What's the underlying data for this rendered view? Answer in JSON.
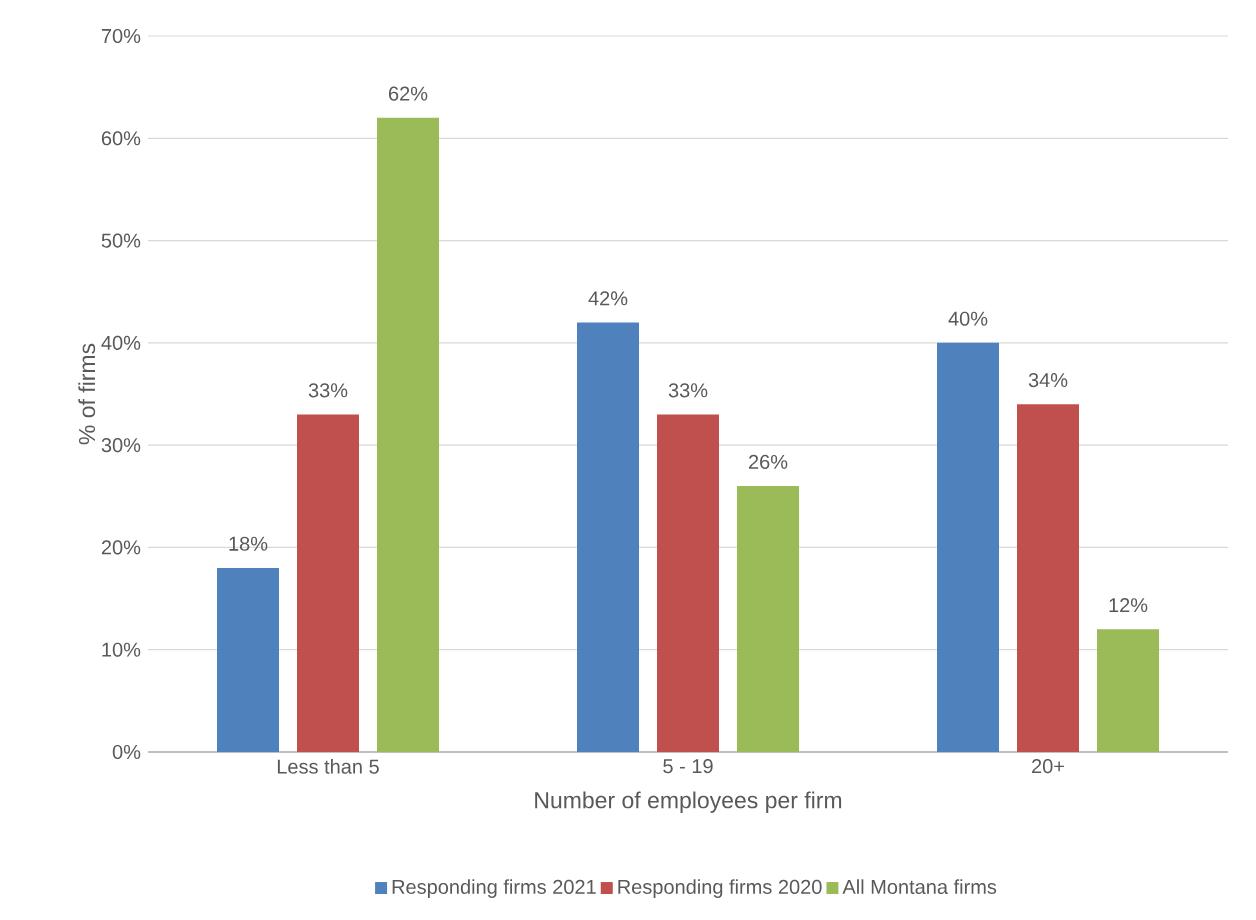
{
  "chart_data": {
    "type": "bar",
    "xlabel": "Number of employees per firm",
    "ylabel": "% of firms",
    "categories": [
      "Less than 5",
      "5 - 19",
      "20+"
    ],
    "series": [
      {
        "name": "Responding firms 2021",
        "color": "#4f81bd",
        "values": [
          18,
          42,
          40
        ],
        "value_labels": [
          "18%",
          "42%",
          "40%"
        ]
      },
      {
        "name": "Responding firms 2020",
        "color": "#c0504d",
        "values": [
          33,
          33,
          34
        ],
        "value_labels": [
          "33%",
          "33%",
          "34%"
        ]
      },
      {
        "name": "All Montana firms",
        "color": "#9bbb59",
        "values": [
          62,
          26,
          12
        ],
        "value_labels": [
          "62%",
          "26%",
          "12%"
        ]
      }
    ],
    "ylim": [
      0,
      70
    ],
    "yticks": [
      {
        "value": 0,
        "label": "0%"
      },
      {
        "value": 10,
        "label": "10%"
      },
      {
        "value": 20,
        "label": "20%"
      },
      {
        "value": 30,
        "label": "30%"
      },
      {
        "value": 40,
        "label": "40%"
      },
      {
        "value": 50,
        "label": "50%"
      },
      {
        "value": 60,
        "label": "60%"
      },
      {
        "value": 70,
        "label": "70%"
      }
    ],
    "grid": "y",
    "legend": "bottom"
  }
}
